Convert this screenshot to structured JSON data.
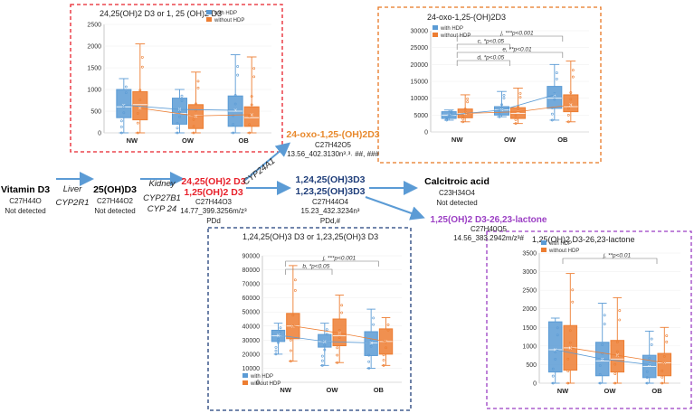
{
  "colors": {
    "with_hdp": "#5b9bd5",
    "without_hdp": "#ed7d31",
    "red": "#e8212b",
    "blue_node": "#1f3e7a",
    "orange_node": "#e8892d",
    "purple_node": "#9b3fc4",
    "arrow": "#5b9bd5",
    "box_red": "#e8212b",
    "box_orange": "#e87722",
    "box_navy": "#1f3e7a",
    "box_purple": "#9b3fc4"
  },
  "pathway": {
    "vitd3": {
      "name": "Vitamin D3",
      "formula": "C27H44O",
      "status": "Not detected"
    },
    "liver_label": "Liver",
    "cyp2r1": "CYP2R1",
    "d25": {
      "name": "25(OH)D3",
      "formula": "C27H44O2",
      "status": "Not detected"
    },
    "kidney_label": "Kidney",
    "cyp27b1": "CYP27B1",
    "cyp24": "CYP 24",
    "d2425": {
      "name1": "24,25(OH)2 D3",
      "name2": "1,25(OH)2 D3",
      "formula": "C27H44O3",
      "mz": "14.77_399.3256m/z³",
      "pd": "PDd"
    },
    "cyp24a1": "CYP24A1",
    "oxo": {
      "name": "24-oxo-1,25-(OH)2D3",
      "formula": "C27H42O5",
      "mz": "13.56_402.3130n³˒³˒ ##, ###"
    },
    "d124": {
      "name1": "1,24,25(OH)3D3",
      "name2": "1,23,25(OH)3D3",
      "formula": "C27H44O4",
      "mz": "15.23_432.3234n³",
      "pd": "PDd,#"
    },
    "calcitroic": {
      "name": "Calcitroic acid",
      "formula": "C23H34O4",
      "status": "Not detected"
    },
    "lactone": {
      "name": "1,25(OH)2 D3-26,23-lactone",
      "formula": "C27H40O5",
      "mz": "14.56_383.2942m/z³#"
    }
  },
  "chart_data": [
    {
      "type": "box",
      "title": "24,25(OH)2 D3 or 1, 25 (OH)2 D3",
      "categories": [
        "NW",
        "OW",
        "OB"
      ],
      "ylim": [
        0,
        2500
      ],
      "yticks": [
        0,
        500,
        1000,
        1500,
        2000,
        2500
      ],
      "legend": [
        "with HDP",
        "without HDP"
      ],
      "series": [
        {
          "name": "with HDP",
          "boxes": [
            {
              "min": 0,
              "q1": 350,
              "median": 600,
              "q3": 1000,
              "max": 1250,
              "mean": 640
            },
            {
              "min": 0,
              "q1": 200,
              "median": 450,
              "q3": 800,
              "max": 1000,
              "mean": 540
            },
            {
              "min": 0,
              "q1": 150,
              "median": 500,
              "q3": 850,
              "max": 1800,
              "mean": 520
            }
          ]
        },
        {
          "name": "without HDP",
          "boxes": [
            {
              "min": 0,
              "q1": 300,
              "median": 650,
              "q3": 950,
              "max": 2050,
              "mean": 570
            },
            {
              "min": 0,
              "q1": 100,
              "median": 400,
              "q3": 650,
              "max": 1400,
              "mean": 390
            },
            {
              "min": 0,
              "q1": 150,
              "median": 350,
              "q3": 600,
              "max": 1750,
              "mean": 420
            }
          ]
        }
      ],
      "annotations": []
    },
    {
      "type": "box",
      "title": "24-oxo-1,25-(OH)2D3",
      "categories": [
        "NW",
        "OW",
        "OB"
      ],
      "ylim": [
        0,
        30000
      ],
      "yticks": [
        0,
        5000,
        10000,
        15000,
        20000,
        25000,
        30000
      ],
      "legend": [
        "with HDP",
        "without HDP"
      ],
      "series": [
        {
          "name": "with HDP",
          "boxes": [
            {
              "min": 3500,
              "q1": 4000,
              "median": 5000,
              "q3": 6000,
              "max": 6500,
              "mean": 5000
            },
            {
              "min": 4500,
              "q1": 5000,
              "median": 6500,
              "q3": 7500,
              "max": 12000,
              "mean": 6500
            },
            {
              "min": 3500,
              "q1": 7000,
              "median": 10000,
              "q3": 13500,
              "max": 20000,
              "mean": 11000
            }
          ]
        },
        {
          "name": "without HDP",
          "boxes": [
            {
              "min": 3000,
              "q1": 4200,
              "median": 5500,
              "q3": 6800,
              "max": 11000,
              "mean": 5500
            },
            {
              "min": 2500,
              "q1": 4000,
              "median": 5500,
              "q3": 7200,
              "max": 13000,
              "mean": 6000
            },
            {
              "min": 3000,
              "q1": 6000,
              "median": 7500,
              "q3": 11000,
              "max": 21000,
              "mean": 8000
            }
          ]
        }
      ],
      "annotations": [
        "j, ***p<0.001",
        "c, *p<0.05",
        "e, **p<0.01",
        "d, *p<0.05"
      ]
    },
    {
      "type": "box",
      "title": "1,24,25(OH)3 D3 or 1,23,25(OH)3 D3",
      "categories": [
        "NW",
        "OW",
        "OB"
      ],
      "ylim": [
        0,
        90000
      ],
      "yticks": [
        0,
        10000,
        20000,
        30000,
        40000,
        50000,
        60000,
        70000,
        80000,
        90000
      ],
      "legend": [
        "with HDP",
        "without HDP"
      ],
      "series": [
        {
          "name": "with HDP",
          "boxes": [
            {
              "min": 20000,
              "q1": 29000,
              "median": 33000,
              "q3": 37000,
              "max": 42000,
              "mean": 33500
            },
            {
              "min": 12000,
              "q1": 25000,
              "median": 29000,
              "q3": 34000,
              "max": 42000,
              "mean": 29000
            },
            {
              "min": 10000,
              "q1": 19000,
              "median": 28000,
              "q3": 36000,
              "max": 52000,
              "mean": 28000
            }
          ]
        },
        {
          "name": "without HDP",
          "boxes": [
            {
              "min": 15000,
              "q1": 31000,
              "median": 40000,
              "q3": 49000,
              "max": 83000,
              "mean": 40000
            },
            {
              "min": 14000,
              "q1": 26000,
              "median": 33000,
              "q3": 45000,
              "max": 62000,
              "mean": 35000
            },
            {
              "min": 12000,
              "q1": 20000,
              "median": 29000,
              "q3": 38000,
              "max": 46000,
              "mean": 29000
            }
          ]
        }
      ],
      "annotations": [
        "j, ***p<0.001",
        "b, *p<0.05"
      ]
    },
    {
      "type": "box",
      "title": "1,25(OH)2 D3-26,23-lactone",
      "categories": [
        "NW",
        "OW",
        "OB"
      ],
      "ylim": [
        0,
        3500
      ],
      "yticks": [
        0,
        500,
        1000,
        1500,
        2000,
        2500,
        3000,
        3500
      ],
      "legend": [
        "with HDP",
        "without HDP"
      ],
      "series": [
        {
          "name": "with HDP",
          "boxes": [
            {
              "min": 0,
              "q1": 300,
              "median": 900,
              "q3": 1650,
              "max": 1750,
              "mean": 900
            },
            {
              "min": 0,
              "q1": 200,
              "median": 600,
              "q3": 1100,
              "max": 2150,
              "mean": 650
            },
            {
              "min": 0,
              "q1": 150,
              "median": 450,
              "q3": 750,
              "max": 1400,
              "mean": 500
            }
          ]
        },
        {
          "name": "without HDP",
          "boxes": [
            {
              "min": 0,
              "q1": 350,
              "median": 950,
              "q3": 1550,
              "max": 2950,
              "mean": 950
            },
            {
              "min": 0,
              "q1": 300,
              "median": 650,
              "q3": 1150,
              "max": 2300,
              "mean": 750
            },
            {
              "min": 0,
              "q1": 200,
              "median": 550,
              "q3": 800,
              "max": 1500,
              "mean": 550
            }
          ]
        }
      ],
      "annotations": [
        "j, **p<0.01"
      ]
    }
  ]
}
